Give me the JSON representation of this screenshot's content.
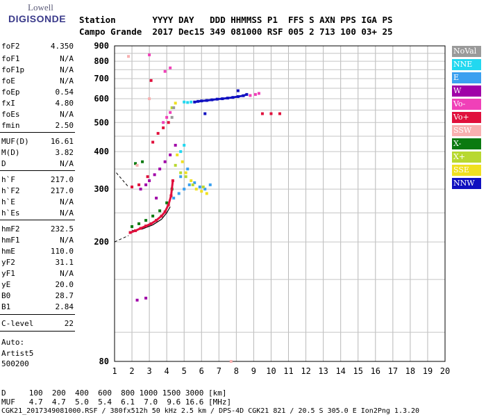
{
  "logo": {
    "line1": "Lowell",
    "line2": "DIGISONDE"
  },
  "header": {
    "row1": "Station       YYYY DAY   DDD HHMMSS P1  FFS S AXN PPS IGA PS",
    "row2": "Campo Grande  2017 Dec15 349 081000 RSF 005 2 713 100 03+ 25"
  },
  "params": [
    {
      "name": "foF2",
      "value": "4.350"
    },
    {
      "name": "foF1",
      "value": "N/A"
    },
    {
      "name": "foF1p",
      "value": "N/A"
    },
    {
      "name": "foE",
      "value": "N/A"
    },
    {
      "name": "foEp",
      "value": "0.54"
    },
    {
      "name": "fxI",
      "value": "4.80"
    },
    {
      "name": "foEs",
      "value": "N/A"
    },
    {
      "name": "fmin",
      "value": "2.50"
    },
    {
      "name": "MUF(D)",
      "value": "16.61"
    },
    {
      "name": "M(D)",
      "value": "3.82"
    },
    {
      "name": "D",
      "value": "N/A"
    },
    {
      "name": "h`F",
      "value": "217.0"
    },
    {
      "name": "h`F2",
      "value": "217.0"
    },
    {
      "name": "h`E",
      "value": "N/A"
    },
    {
      "name": "h`Es",
      "value": "N/A"
    },
    {
      "name": "hmF2",
      "value": "232.5"
    },
    {
      "name": "hmF1",
      "value": "N/A"
    },
    {
      "name": "hmE",
      "value": "110.0"
    },
    {
      "name": "yF2",
      "value": "31.1"
    },
    {
      "name": "yF1",
      "value": "N/A"
    },
    {
      "name": "yE",
      "value": "20.0"
    },
    {
      "name": "B0",
      "value": "28.7"
    },
    {
      "name": "B1",
      "value": "2.84"
    },
    {
      "name": "C-level",
      "value": "22"
    }
  ],
  "auto": {
    "line1": "Auto:",
    "line2": "Artist5",
    "line3": "500200"
  },
  "footer": {
    "d_row": "D     100  200  400  600  800 1000 1500 3000 [km]",
    "muf_row": "MUF   4.7  4.7  5.0  5.4  6.1  7.0  9.6 16.6 [MHz]",
    "info": "CGK21_2017349081000.RSF / 380fx512h 50 kHz 2.5 km / DPS-4D CGK21 821 / 20.5 S 305.0 E Ion2Png 1.3.20"
  },
  "legend": [
    {
      "label": "NoVal",
      "color": "#9a9a9a"
    },
    {
      "label": "NNE",
      "color": "#22d8f0"
    },
    {
      "label": "E",
      "color": "#3aa0f0"
    },
    {
      "label": "W",
      "color": "#a000a8"
    },
    {
      "label": "Vo-",
      "color": "#f040b8"
    },
    {
      "label": "Vo+",
      "color": "#e0103c"
    },
    {
      "label": "SSW",
      "color": "#f8b0b0"
    },
    {
      "label": "X-",
      "color": "#0a7a10"
    },
    {
      "label": "X+",
      "color": "#b8d830"
    },
    {
      "label": "SSE",
      "color": "#f0e020"
    },
    {
      "label": "NNW",
      "color": "#1010c0"
    }
  ],
  "chart_data": {
    "type": "scatter",
    "xlabel": "",
    "ylabel": "",
    "xlim": [
      1,
      20
    ],
    "ylim": [
      80,
      900
    ],
    "yscale": "log",
    "x_ticks": [
      1,
      2,
      3,
      4,
      5,
      6,
      7,
      8,
      9,
      10,
      11,
      12,
      13,
      14,
      15,
      16,
      17,
      18,
      19,
      20
    ],
    "y_ticks": [
      80,
      200,
      300,
      400,
      500,
      600,
      700,
      800,
      900
    ],
    "grid": true,
    "legend_position": "right",
    "series": [
      {
        "name": "NNW",
        "color": "#1010c0",
        "points": [
          [
            5.6,
            585
          ],
          [
            5.8,
            588
          ],
          [
            6.0,
            590
          ],
          [
            6.3,
            592
          ],
          [
            6.6,
            595
          ],
          [
            6.9,
            598
          ],
          [
            7.2,
            600
          ],
          [
            7.5,
            603
          ],
          [
            7.8,
            606
          ],
          [
            8.1,
            610
          ],
          [
            8.4,
            614
          ],
          [
            8.6,
            620
          ],
          [
            6.2,
            535
          ],
          [
            8.1,
            638
          ]
        ]
      },
      {
        "name": "Vo+",
        "color": "#e0103c",
        "points": [
          [
            1.9,
            215
          ],
          [
            2.2,
            218
          ],
          [
            2.5,
            222
          ],
          [
            2.8,
            226
          ],
          [
            3.1,
            230
          ],
          [
            3.4,
            236
          ],
          [
            3.7,
            244
          ],
          [
            3.9,
            252
          ],
          [
            4.1,
            266
          ],
          [
            4.25,
            285
          ],
          [
            4.35,
            320
          ],
          [
            2.0,
            305
          ],
          [
            2.4,
            310
          ],
          [
            2.9,
            330
          ],
          [
            3.2,
            430
          ],
          [
            3.5,
            460
          ],
          [
            3.8,
            480
          ],
          [
            4.1,
            500
          ],
          [
            9.5,
            535
          ],
          [
            10.0,
            535
          ],
          [
            10.5,
            535
          ],
          [
            3.1,
            690
          ]
        ]
      },
      {
        "name": "X-",
        "color": "#0a7a10",
        "points": [
          [
            2.0,
            225
          ],
          [
            2.4,
            230
          ],
          [
            2.8,
            236
          ],
          [
            3.2,
            244
          ],
          [
            3.6,
            254
          ],
          [
            4.0,
            270
          ],
          [
            4.3,
            300
          ],
          [
            2.2,
            365
          ],
          [
            2.6,
            370
          ]
        ]
      },
      {
        "name": "W",
        "color": "#a000a8",
        "points": [
          [
            2.5,
            300
          ],
          [
            2.8,
            310
          ],
          [
            3.0,
            320
          ],
          [
            3.3,
            335
          ],
          [
            3.6,
            350
          ],
          [
            3.9,
            370
          ],
          [
            4.2,
            390
          ],
          [
            4.5,
            420
          ],
          [
            3.4,
            280
          ],
          [
            2.3,
            128
          ],
          [
            2.8,
            130
          ]
        ]
      },
      {
        "name": "E",
        "color": "#3aa0f0",
        "points": [
          [
            4.4,
            280
          ],
          [
            4.7,
            290
          ],
          [
            5.0,
            300
          ],
          [
            5.3,
            310
          ],
          [
            5.6,
            315
          ],
          [
            5.9,
            305
          ],
          [
            6.2,
            300
          ],
          [
            6.5,
            310
          ],
          [
            4.8,
            330
          ],
          [
            5.2,
            350
          ]
        ]
      },
      {
        "name": "NNE",
        "color": "#22d8f0",
        "points": [
          [
            5.0,
            585
          ],
          [
            5.2,
            583
          ],
          [
            5.4,
            585
          ],
          [
            4.8,
            400
          ],
          [
            5.0,
            420
          ]
        ]
      },
      {
        "name": "SSE",
        "color": "#f0e020",
        "points": [
          [
            4.6,
            390
          ],
          [
            4.9,
            370
          ],
          [
            5.1,
            340
          ],
          [
            5.4,
            320
          ],
          [
            5.7,
            300
          ],
          [
            6.0,
            295
          ],
          [
            6.3,
            290
          ],
          [
            4.5,
            580
          ]
        ]
      },
      {
        "name": "X+",
        "color": "#b8d830",
        "points": [
          [
            4.5,
            360
          ],
          [
            4.8,
            340
          ],
          [
            5.1,
            330
          ],
          [
            5.5,
            310
          ],
          [
            6.1,
            305
          ],
          [
            4.3,
            560
          ]
        ]
      },
      {
        "name": "Vo-",
        "color": "#f040b8",
        "points": [
          [
            3.8,
            500
          ],
          [
            4.0,
            520
          ],
          [
            4.2,
            540
          ],
          [
            8.8,
            615
          ],
          [
            9.1,
            620
          ],
          [
            9.3,
            625
          ],
          [
            3.9,
            740
          ],
          [
            4.2,
            760
          ],
          [
            3.0,
            840
          ]
        ]
      },
      {
        "name": "SSW",
        "color": "#f8b0b0",
        "points": [
          [
            1.8,
            830
          ],
          [
            2.3,
            360
          ],
          [
            3.0,
            600
          ],
          [
            7.7,
            80
          ]
        ]
      },
      {
        "name": "NoVal",
        "color": "#9a9a9a",
        "points": [
          [
            4.4,
            560
          ],
          [
            4.3,
            520
          ]
        ]
      }
    ]
  }
}
